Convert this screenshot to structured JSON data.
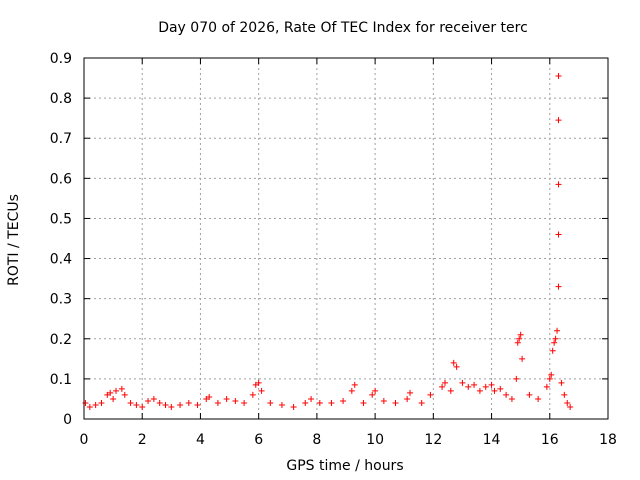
{
  "chart_data": {
    "type": "scatter",
    "title": "Day 070 of 2026, Rate Of TEC Index for receiver terc",
    "xlabel": "GPS time / hours",
    "ylabel": "ROTI / TECUs",
    "xlim": [
      0,
      18
    ],
    "ylim": [
      0,
      0.9
    ],
    "xticks": [
      0,
      2,
      4,
      6,
      8,
      10,
      12,
      14,
      16,
      18
    ],
    "yticks": [
      0,
      0.1,
      0.2,
      0.3,
      0.4,
      0.5,
      0.6,
      0.7,
      0.8,
      0.9
    ],
    "xtick_labels": [
      "0",
      "2",
      "4",
      "6",
      "8",
      "10",
      "12",
      "14",
      "16",
      "18"
    ],
    "ytick_labels": [
      "0",
      "0.1",
      "0.2",
      "0.3",
      "0.4",
      "0.5",
      "0.6",
      "0.7",
      "0.8",
      "0.9"
    ],
    "grid": true,
    "marker": "+",
    "color": "#ff0000",
    "series": [
      {
        "name": "ROTI",
        "points": [
          [
            0.05,
            0.04
          ],
          [
            0.2,
            0.03
          ],
          [
            0.4,
            0.035
          ],
          [
            0.6,
            0.04
          ],
          [
            0.8,
            0.06
          ],
          [
            0.9,
            0.065
          ],
          [
            1.0,
            0.05
          ],
          [
            1.1,
            0.07
          ],
          [
            1.3,
            0.075
          ],
          [
            1.4,
            0.06
          ],
          [
            1.6,
            0.04
          ],
          [
            1.8,
            0.035
          ],
          [
            2.0,
            0.03
          ],
          [
            2.2,
            0.045
          ],
          [
            2.4,
            0.05
          ],
          [
            2.6,
            0.04
          ],
          [
            2.8,
            0.035
          ],
          [
            3.0,
            0.03
          ],
          [
            3.3,
            0.035
          ],
          [
            3.6,
            0.04
          ],
          [
            3.9,
            0.035
          ],
          [
            4.2,
            0.05
          ],
          [
            4.3,
            0.055
          ],
          [
            4.6,
            0.04
          ],
          [
            4.9,
            0.05
          ],
          [
            5.2,
            0.045
          ],
          [
            5.5,
            0.04
          ],
          [
            5.8,
            0.06
          ],
          [
            5.9,
            0.085
          ],
          [
            6.0,
            0.09
          ],
          [
            6.1,
            0.07
          ],
          [
            6.4,
            0.04
          ],
          [
            6.8,
            0.035
          ],
          [
            7.2,
            0.03
          ],
          [
            7.6,
            0.04
          ],
          [
            7.8,
            0.05
          ],
          [
            8.1,
            0.04
          ],
          [
            8.5,
            0.04
          ],
          [
            8.9,
            0.045
          ],
          [
            9.2,
            0.07
          ],
          [
            9.3,
            0.085
          ],
          [
            9.6,
            0.04
          ],
          [
            9.9,
            0.06
          ],
          [
            10.0,
            0.07
          ],
          [
            10.3,
            0.045
          ],
          [
            10.7,
            0.04
          ],
          [
            11.1,
            0.05
          ],
          [
            11.2,
            0.065
          ],
          [
            11.6,
            0.04
          ],
          [
            11.9,
            0.06
          ],
          [
            12.3,
            0.08
          ],
          [
            12.4,
            0.09
          ],
          [
            12.6,
            0.07
          ],
          [
            12.7,
            0.14
          ],
          [
            12.8,
            0.13
          ],
          [
            13.0,
            0.09
          ],
          [
            13.2,
            0.08
          ],
          [
            13.4,
            0.085
          ],
          [
            13.6,
            0.07
          ],
          [
            13.8,
            0.08
          ],
          [
            14.0,
            0.085
          ],
          [
            14.1,
            0.07
          ],
          [
            14.3,
            0.075
          ],
          [
            14.5,
            0.06
          ],
          [
            14.7,
            0.05
          ],
          [
            14.85,
            0.1
          ],
          [
            14.9,
            0.19
          ],
          [
            14.95,
            0.2
          ],
          [
            15.0,
            0.21
          ],
          [
            15.05,
            0.15
          ],
          [
            15.3,
            0.06
          ],
          [
            15.6,
            0.05
          ],
          [
            15.9,
            0.08
          ],
          [
            16.0,
            0.1
          ],
          [
            16.05,
            0.11
          ],
          [
            16.1,
            0.17
          ],
          [
            16.15,
            0.19
          ],
          [
            16.2,
            0.2
          ],
          [
            16.25,
            0.22
          ],
          [
            16.3,
            0.33
          ],
          [
            16.3,
            0.46
          ],
          [
            16.3,
            0.585
          ],
          [
            16.3,
            0.745
          ],
          [
            16.3,
            0.855
          ],
          [
            16.4,
            0.09
          ],
          [
            16.5,
            0.06
          ],
          [
            16.6,
            0.04
          ],
          [
            16.7,
            0.03
          ]
        ]
      }
    ]
  }
}
